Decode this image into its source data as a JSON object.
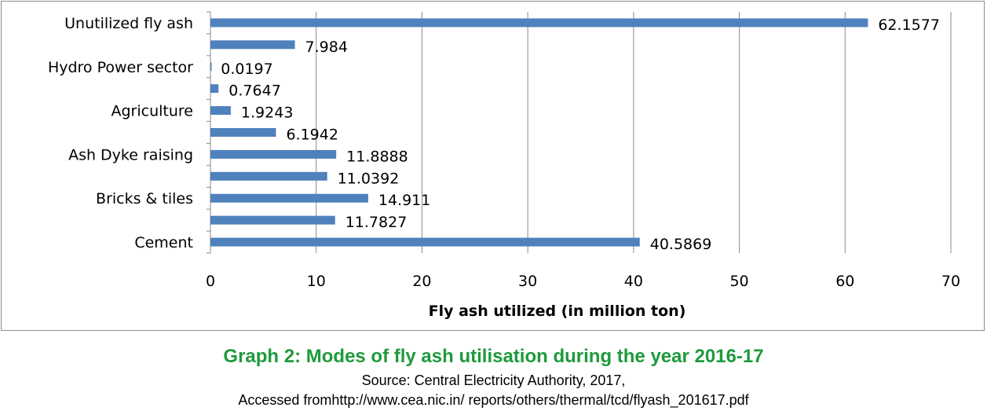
{
  "chart_data": {
    "type": "bar",
    "orientation": "horizontal",
    "categories": [
      "Cement",
      "",
      "Bricks & tiles",
      "",
      "Ash Dyke raising",
      "",
      "Agriculture",
      "",
      "Hydro Power sector",
      "",
      "Unutilized fly ash"
    ],
    "values": [
      40.5869,
      11.7827,
      14.911,
      11.0392,
      11.8888,
      6.1942,
      1.9243,
      0.7647,
      0.0197,
      7.984,
      62.1577
    ],
    "data_labels": [
      "40.5869",
      "11.7827",
      "14.911",
      "11.0392",
      "11.8888",
      "6.1942",
      "1.9243",
      "0.7647",
      "0.0197",
      "7.984",
      "62.1577"
    ],
    "xlabel": "Fly ash utilized (in million ton)",
    "ylabel": "",
    "xlim": [
      0,
      70
    ],
    "xticks": [
      "0",
      "10",
      "20",
      "30",
      "40",
      "50",
      "60",
      "70"
    ],
    "grid": true,
    "bar_color": "#4f81bd"
  },
  "caption": {
    "title": "Graph 2: Modes of fly ash utilisation during the year 2016-17",
    "source": "Source: Central Electricity Authority, 2017,",
    "accessed": "Accessed fromhttp://www.cea.nic.in/ reports/others/thermal/tcd/flyash_201617.pdf"
  }
}
